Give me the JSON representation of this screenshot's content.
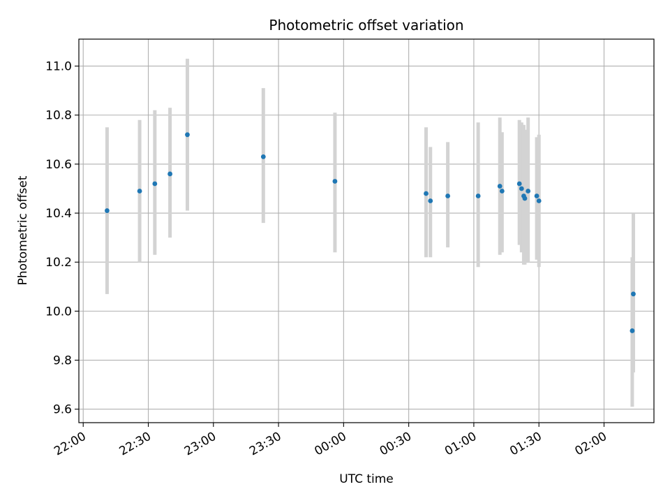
{
  "chart_data": {
    "type": "scatter",
    "title": "Photometric offset variation",
    "xlabel": "UTC time",
    "ylabel": "Photometric offset",
    "grid": true,
    "xlim": [
      "21:58",
      "02:23"
    ],
    "ylim": [
      9.545,
      11.11
    ],
    "x_ticks": [
      "22:00",
      "22:30",
      "23:00",
      "23:30",
      "00:00",
      "00:30",
      "01:00",
      "01:30",
      "02:00"
    ],
    "y_ticks": [
      "9.6",
      "9.8",
      "10.0",
      "10.2",
      "10.4",
      "10.6",
      "10.8",
      "11.0"
    ],
    "marker_color": "#1f77b4",
    "errorbar_color": "#d3d3d3",
    "points": [
      {
        "x": "22:11",
        "y": 10.41,
        "ylow": 10.07,
        "yhigh": 10.75
      },
      {
        "x": "22:26",
        "y": 10.49,
        "ylow": 10.2,
        "yhigh": 10.78
      },
      {
        "x": "22:33",
        "y": 10.52,
        "ylow": 10.23,
        "yhigh": 10.82
      },
      {
        "x": "22:40",
        "y": 10.56,
        "ylow": 10.3,
        "yhigh": 10.83
      },
      {
        "x": "22:48",
        "y": 10.72,
        "ylow": 10.41,
        "yhigh": 11.03
      },
      {
        "x": "23:23",
        "y": 10.63,
        "ylow": 10.36,
        "yhigh": 10.91
      },
      {
        "x": "23:56",
        "y": 10.53,
        "ylow": 10.24,
        "yhigh": 10.81
      },
      {
        "x": "00:38",
        "y": 10.48,
        "ylow": 10.22,
        "yhigh": 10.75
      },
      {
        "x": "00:40",
        "y": 10.45,
        "ylow": 10.22,
        "yhigh": 10.67
      },
      {
        "x": "00:48",
        "y": 10.47,
        "ylow": 10.26,
        "yhigh": 10.69
      },
      {
        "x": "01:02",
        "y": 10.47,
        "ylow": 10.18,
        "yhigh": 10.77
      },
      {
        "x": "01:12",
        "y": 10.51,
        "ylow": 10.23,
        "yhigh": 10.79
      },
      {
        "x": "01:13",
        "y": 10.49,
        "ylow": 10.24,
        "yhigh": 10.73
      },
      {
        "x": "01:21",
        "y": 10.52,
        "ylow": 10.27,
        "yhigh": 10.78
      },
      {
        "x": "01:22",
        "y": 10.5,
        "ylow": 10.24,
        "yhigh": 10.77
      },
      {
        "x": "01:23",
        "y": 10.47,
        "ylow": 10.19,
        "yhigh": 10.76
      },
      {
        "x": "01:23.5",
        "y": 10.46,
        "ylow": 10.19,
        "yhigh": 10.74
      },
      {
        "x": "01:25",
        "y": 10.49,
        "ylow": 10.2,
        "yhigh": 10.79
      },
      {
        "x": "01:29",
        "y": 10.47,
        "ylow": 10.21,
        "yhigh": 10.71
      },
      {
        "x": "01:30",
        "y": 10.45,
        "ylow": 10.18,
        "yhigh": 10.72
      },
      {
        "x": "02:13",
        "y": 9.92,
        "ylow": 9.61,
        "yhigh": 10.22
      },
      {
        "x": "02:13.5",
        "y": 10.07,
        "ylow": 9.75,
        "yhigh": 10.4
      }
    ]
  }
}
